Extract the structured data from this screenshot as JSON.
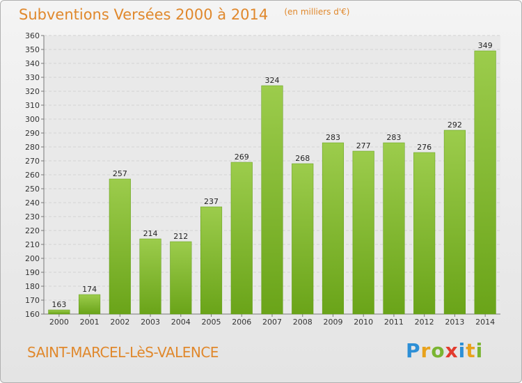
{
  "chart_data": {
    "type": "bar",
    "title": "Subventions Versées 2000 à 2014",
    "unit_note": "(en milliers d'€)",
    "categories": [
      "2000",
      "2001",
      "2002",
      "2003",
      "2004",
      "2005",
      "2006",
      "2007",
      "2008",
      "2009",
      "2010",
      "2011",
      "2012",
      "2013",
      "2014"
    ],
    "values": [
      163,
      174,
      257,
      214,
      212,
      237,
      269,
      324,
      268,
      283,
      277,
      283,
      276,
      292,
      349
    ],
    "ylim": [
      160,
      360
    ],
    "y_tick_step": 10,
    "grid": true,
    "bar_color_top": "#9ccc4c",
    "bar_color_bottom": "#6aa419"
  },
  "commune": "SAINT-MARCEL-LèS-VALENCE",
  "logo": {
    "text": "Proxiti",
    "colors": [
      "#2d8fd6",
      "#e8a21c",
      "#7ab532",
      "#e23b2e",
      "#2d8fd6",
      "#e8a21c",
      "#7ab532"
    ]
  },
  "colors": {
    "title": "#e0882c",
    "background": "#ececec"
  }
}
